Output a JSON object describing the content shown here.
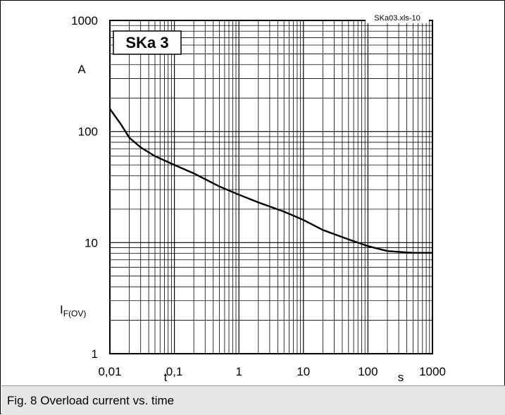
{
  "caption": "Fig. 8 Overload current vs. time",
  "chart_data": {
    "type": "line",
    "title": "SKa 3",
    "source_label": "SKa03.xls-10",
    "x_scale": "log",
    "y_scale": "log",
    "xlim": [
      0.01,
      1000
    ],
    "ylim": [
      1,
      1000
    ],
    "x_ticks": [
      {
        "value": 0.01,
        "label": "0,01"
      },
      {
        "value": 0.1,
        "label": "0,1"
      },
      {
        "value": 1,
        "label": "1"
      },
      {
        "value": 10,
        "label": "10"
      },
      {
        "value": 100,
        "label": "100"
      },
      {
        "value": 1000,
        "label": "1000"
      }
    ],
    "y_ticks": [
      {
        "value": 1000,
        "label": "1000"
      },
      {
        "value": 100,
        "label": "100"
      },
      {
        "value": 10,
        "label": "10"
      },
      {
        "value": 1,
        "label": "1"
      }
    ],
    "xlabel": {
      "symbol": "t",
      "unit": "s"
    },
    "ylabel": {
      "symbol": "I",
      "subscript": "F(OV)",
      "unit": "A"
    },
    "grid": true,
    "series": [
      {
        "x": [
          0.01,
          0.015,
          0.02,
          0.03,
          0.05,
          0.1,
          0.2,
          0.5,
          1,
          2,
          5,
          10,
          20,
          50,
          100,
          200,
          500,
          1000
        ],
        "y": [
          160,
          115,
          88,
          72,
          60,
          50,
          42,
          32,
          27,
          23,
          19,
          16,
          13,
          10.7,
          9.3,
          8.4,
          8.1,
          8.1
        ]
      }
    ],
    "color": "#000000"
  }
}
